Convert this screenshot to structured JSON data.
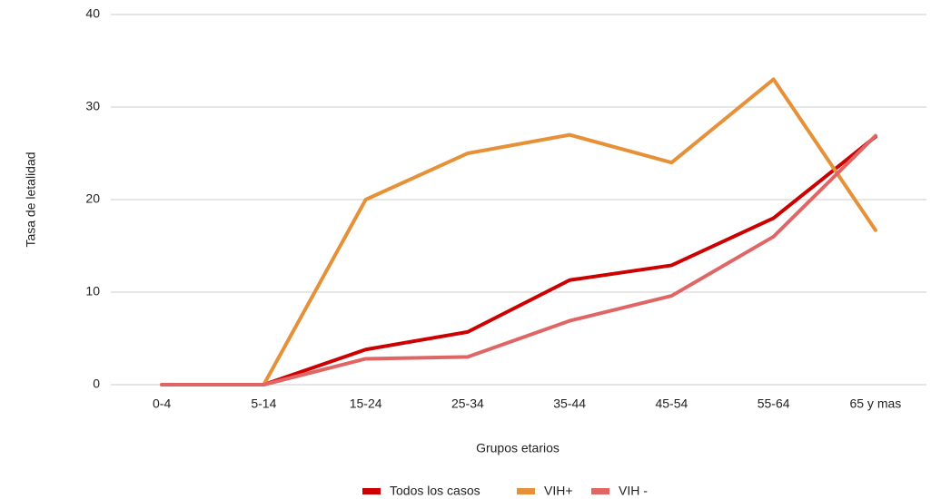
{
  "chart_data": {
    "type": "line",
    "x_label": "Grupos etarios",
    "y_label": "Tasa de letalidad",
    "categories": [
      "0-4",
      "5-14",
      "15-24",
      "25-34",
      "35-44",
      "45-54",
      "55-64",
      "65 y mas"
    ],
    "series": [
      {
        "name": "Todos los casos",
        "color": "#cc0000",
        "values": [
          0,
          0,
          3.8,
          5.7,
          11.3,
          12.9,
          18,
          26.8
        ]
      },
      {
        "name": "VIH+",
        "color": "#e69138",
        "values": [
          0,
          0,
          20,
          25,
          27,
          24,
          33,
          16.7
        ]
      },
      {
        "name": "VIH -",
        "color": "#e06666",
        "values": [
          0,
          0,
          2.8,
          3,
          6.9,
          9.6,
          16,
          26.9
        ]
      }
    ],
    "ylim": [
      0,
      40
    ],
    "yticks": [
      0,
      10,
      20,
      30,
      40
    ],
    "grid": true,
    "legend": "bottom"
  }
}
